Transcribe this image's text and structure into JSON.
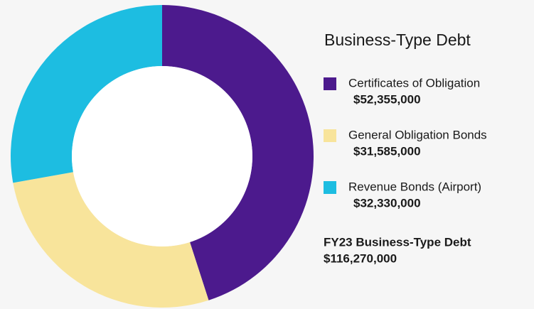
{
  "chart_data": {
    "type": "donut",
    "title": "Business-Type Debt",
    "categories": [
      "Certificates of Obligation",
      "General Obligation Bonds",
      "Revenue Bonds (Airport)"
    ],
    "values": [
      52355000,
      31585000,
      32330000
    ],
    "value_labels": [
      "$52,355,000",
      "$31,585,000",
      "$32,330,000"
    ],
    "colors": [
      "#4c1a8d",
      "#f8e49b",
      "#1dbde1"
    ],
    "total_label": "FY23 Business-Type Debt",
    "total": "$116,270,000"
  }
}
